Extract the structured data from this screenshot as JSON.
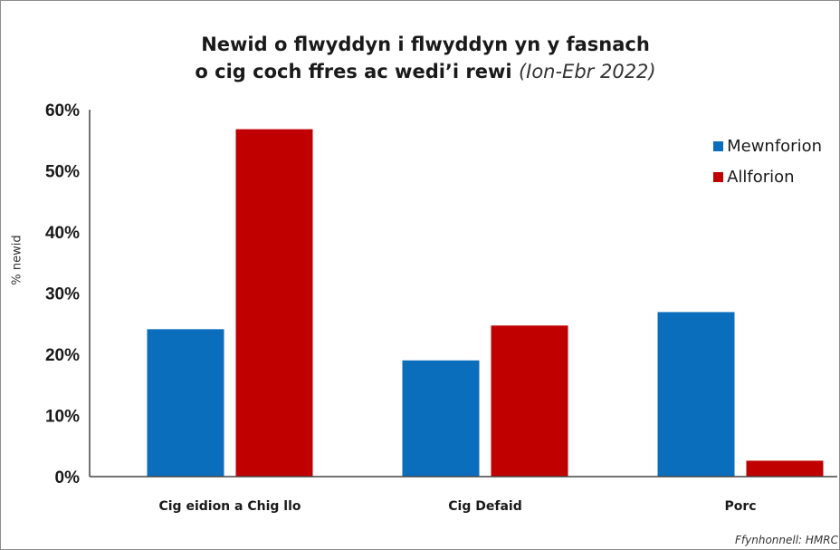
{
  "title_line1": "Newid o flwyddyn i flwyddyn yn y fasnach",
  "title_line2_bold": "o cig coch ffres ac wedi’i rewi",
  "title_line2_period": "(Ion-Ebr 2022)",
  "source": "Ffynhonnell: HMRC",
  "colors": {
    "Mewnforion": "#0a6ebd",
    "Allforion": "#c00000",
    "axis": "#444444"
  },
  "chart_data": {
    "type": "bar",
    "title": "Newid o flwyddyn i flwyddyn yn y fasnach o cig coch ffres ac wedi’i rewi (Ion-Ebr 2022)",
    "categories": [
      "Cig eidion a Chig llo",
      "Cig Defaid",
      "Porc"
    ],
    "series": [
      {
        "name": "Mewnforion",
        "values": [
          24.1,
          19.0,
          26.9
        ]
      },
      {
        "name": "Allforion",
        "values": [
          56.8,
          24.7,
          2.6
        ]
      }
    ],
    "xlabel": "",
    "ylabel": "% newid",
    "ylim": [
      0,
      60
    ],
    "yticks": [
      0,
      10,
      20,
      30,
      40,
      50,
      60
    ],
    "ytick_labels": [
      "0%",
      "10%",
      "20%",
      "30%",
      "40%",
      "50%",
      "60%"
    ],
    "grid": false,
    "legend": "top-right"
  }
}
